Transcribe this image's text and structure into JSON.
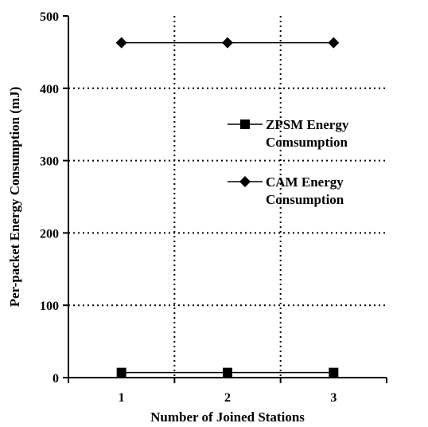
{
  "chart_data": {
    "type": "line",
    "xlabel": "Number of Joined Stations",
    "ylabel": "Per-packet Energy Consumption (mJ)",
    "categories": [
      "1",
      "2",
      "3"
    ],
    "ylim": [
      0,
      500
    ],
    "yticks": [
      "0",
      "100",
      "200",
      "300",
      "400",
      "500"
    ],
    "grid": true,
    "legend_placement": "center-right",
    "series": [
      {
        "name": [
          "ZPSM Energy",
          "Comsumption"
        ],
        "marker": "square",
        "color": "#000000",
        "values": [
          7,
          7,
          7
        ]
      },
      {
        "name": [
          "CAM Energy",
          "Consumption"
        ],
        "marker": "diamond",
        "color": "#000000",
        "values": [
          463,
          463,
          463
        ]
      }
    ]
  }
}
